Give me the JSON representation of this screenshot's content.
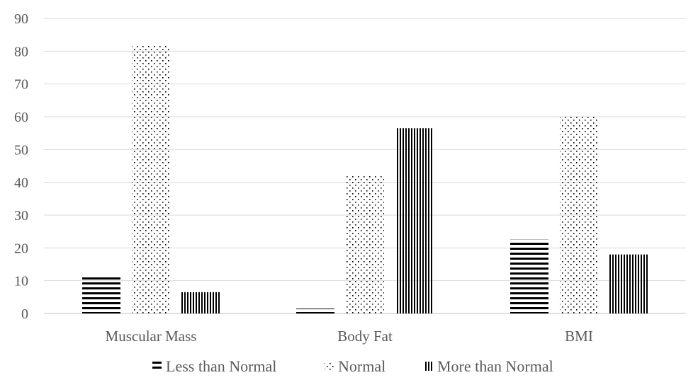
{
  "chart_data": {
    "type": "bar",
    "categories": [
      "Muscular Mass",
      "Body Fat",
      "BMI"
    ],
    "series": [
      {
        "name": "Less than Normal",
        "values": [
          11.5,
          1.5,
          22.5
        ],
        "pattern": "horizontal-lines"
      },
      {
        "name": "Normal",
        "values": [
          82,
          42,
          60
        ],
        "pattern": "dots"
      },
      {
        "name": "More than Normal",
        "values": [
          6.5,
          56.5,
          18
        ],
        "pattern": "vertical-lines"
      }
    ],
    "ylim": [
      0,
      90
    ],
    "yticks": [
      "0",
      "10",
      "20",
      "30",
      "40",
      "50",
      "60",
      "70",
      "80",
      "90"
    ],
    "grid": true,
    "legend_position": "bottom",
    "colors": {
      "ink": "#000000",
      "grid": "#d9d9d9",
      "text": "#595959"
    }
  }
}
